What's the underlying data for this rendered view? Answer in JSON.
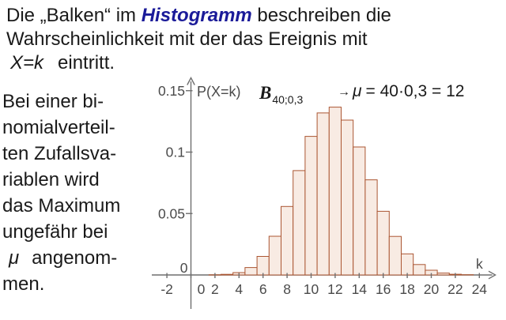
{
  "colors": {
    "emphasis_blue": "#1b1b99",
    "text_black": "#1a1a1a",
    "bar_fill": "#f8ebe3",
    "bar_stroke": "#ab5632",
    "axis_gray": "#6f6f6f",
    "label_gray": "#4a4a4a"
  },
  "intro": {
    "l1_pre": "Die „Balken“ im ",
    "l1_em": "Histogramm",
    "l1_post": " beschreiben die",
    "l2": "Wahrscheinlichkeit mit der das Ereignis mit",
    "l3_math": "X=k",
    "l3_post": "eintritt."
  },
  "aside": {
    "lines": [
      "Bei einer bi-",
      "nomialverteil-",
      "ten Zufallsva-",
      "riablen wird",
      "das Maximum",
      "ungefähr bei"
    ],
    "mu_symbol": "μ",
    "mu_rest": "angenom-",
    "last_line": "men."
  },
  "chart_data": {
    "type": "bar",
    "ylabel": "P(X=k)",
    "xlabel": "k",
    "dist_main": "B",
    "dist_sub": "40;0,3",
    "annotation": {
      "arrow": "→",
      "mu": "μ",
      "text": "= 40·0,3 = 12"
    },
    "x_ticks": [
      -2,
      0,
      2,
      4,
      6,
      8,
      10,
      12,
      14,
      16,
      18,
      20,
      22,
      24
    ],
    "y_ticks": [
      {
        "v": 0.05,
        "label": "0.05"
      },
      {
        "v": 0.1,
        "label": "0.1"
      },
      {
        "v": 0.15,
        "label": "0.15"
      }
    ],
    "y_zero_label": "0",
    "xlim": [
      -3,
      25.5
    ],
    "ylim": [
      0,
      0.16
    ],
    "grid": false,
    "legend": false,
    "k": [
      2,
      3,
      4,
      5,
      6,
      7,
      8,
      9,
      10,
      11,
      12,
      13,
      14,
      15,
      16,
      17,
      18,
      19,
      20,
      21,
      22,
      23
    ],
    "p": [
      9e-05,
      0.0005,
      0.00196,
      0.00606,
      0.01514,
      0.03152,
      0.05573,
      0.08492,
      0.11282,
      0.13187,
      0.13657,
      0.12607,
      0.1042,
      0.07741,
      0.05183,
      0.03136,
      0.01717,
      0.00852,
      0.00384,
      0.00157,
      0.00058,
      0.00019
    ]
  }
}
